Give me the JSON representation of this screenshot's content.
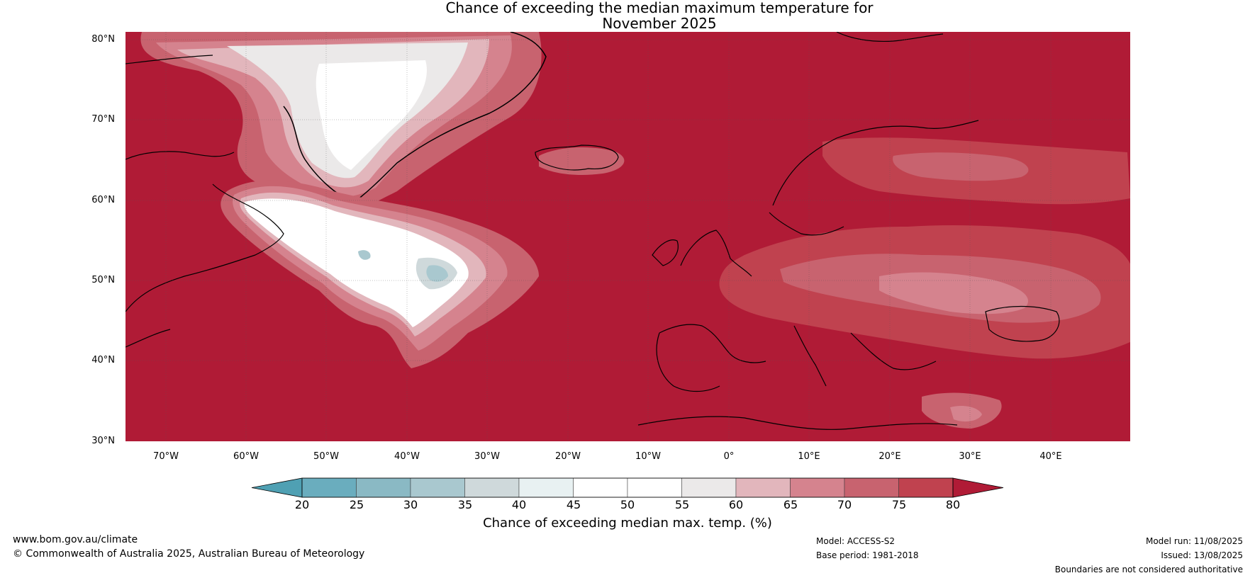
{
  "title": {
    "line1": "Chance of exceeding the median maximum temperature for",
    "line2": "November 2025"
  },
  "map": {
    "lat_ticks": [
      "80°N",
      "70°N",
      "60°N",
      "50°N",
      "40°N",
      "30°N"
    ],
    "lon_ticks": [
      "70°W",
      "60°W",
      "50°W",
      "40°W",
      "30°W",
      "20°W",
      "10°W",
      "0°",
      "10°E",
      "20°E",
      "30°E",
      "40°E"
    ],
    "lon_range": [
      -75,
      50
    ],
    "lat_range": [
      30,
      81
    ],
    "background_color": "#b01b36"
  },
  "colorbar": {
    "ticks": [
      "20",
      "25",
      "30",
      "35",
      "40",
      "45",
      "50",
      "55",
      "60",
      "65",
      "70",
      "75",
      "80"
    ],
    "colors": [
      "#4fa0b3",
      "#6aadbe",
      "#8ab9c4",
      "#a9c8cf",
      "#cfd9db",
      "#e8f1f2",
      "#ffffff",
      "#ffffff",
      "#ebe9e9",
      "#e2b6bc",
      "#d5838e",
      "#c8636f",
      "#c0424f",
      "#b01b36"
    ],
    "label": "Chance of exceeding median max. temp. (%)"
  },
  "footer": {
    "website": "www.bom.gov.au/climate",
    "copyright": "© Commonwealth of Australia 2025, Australian Bureau of Meteorology",
    "model": "Model: ACCESS-S2",
    "base_period": "Base period: 1981-2018",
    "model_run": "Model run: 11/08/2025",
    "issued": "Issued: 13/08/2025",
    "disclaimer": "Boundaries are not considered authoritative"
  }
}
